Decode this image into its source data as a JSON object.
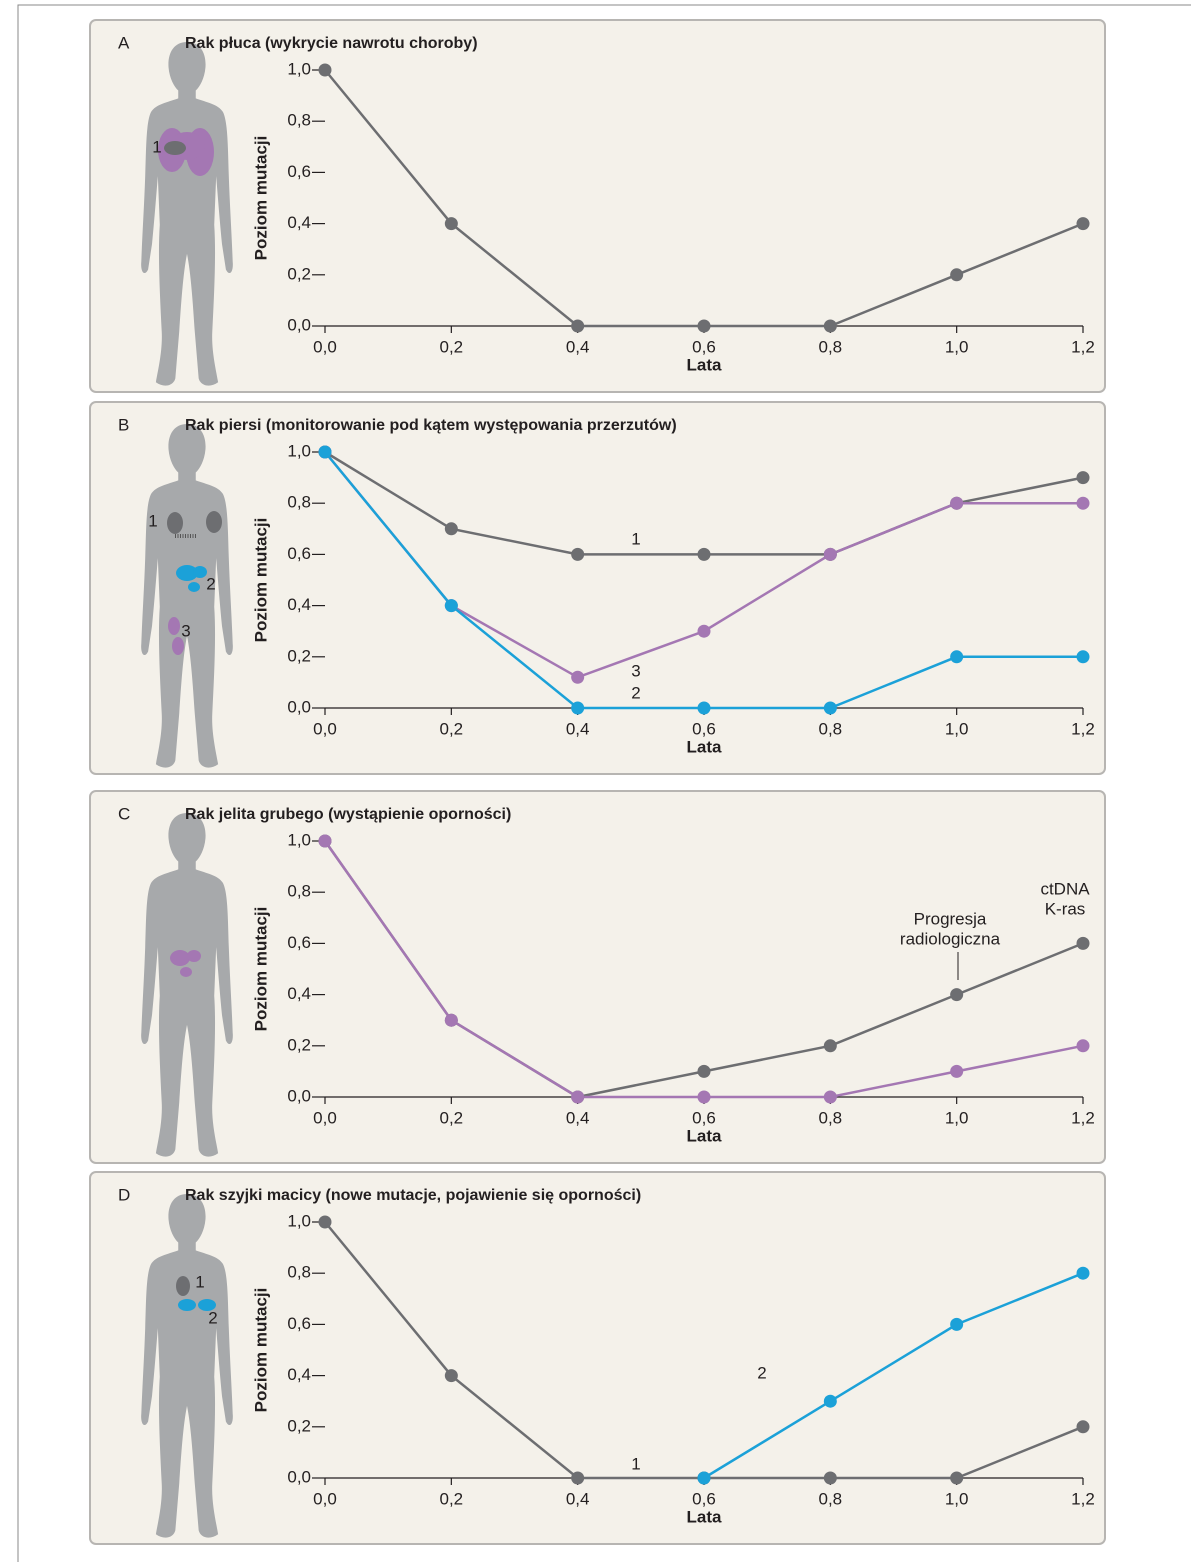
{
  "chart_data": [
    {
      "type": "line",
      "letter": "A",
      "title": "Rak płuca (wykrycie nawrotu choroby)",
      "xlabel": "Lata",
      "ylabel": "Poziom mutacji",
      "x": [
        0,
        0.2,
        0.4,
        0.6,
        0.8,
        1.0,
        1.2
      ],
      "xlim": [
        0,
        1.2
      ],
      "ylim": [
        0,
        1.0
      ],
      "xticks": [
        {
          "value": 0,
          "label": "0,0"
        },
        {
          "value": 0.2,
          "label": "0,2"
        },
        {
          "value": 0.4,
          "label": "0,4"
        },
        {
          "value": 0.6,
          "label": "0,6"
        },
        {
          "value": 0.8,
          "label": "0,8"
        },
        {
          "value": 1.0,
          "label": "1,0"
        },
        {
          "value": 1.2,
          "label": "1,2"
        }
      ],
      "yticks": [
        {
          "value": 0,
          "label": "0,0"
        },
        {
          "value": 0.2,
          "label": "0,2"
        },
        {
          "value": 0.4,
          "label": "0,4"
        },
        {
          "value": 0.6,
          "label": "0,6"
        },
        {
          "value": 0.8,
          "label": "0,8"
        },
        {
          "value": 1.0,
          "label": "1,0"
        }
      ],
      "series": [
        {
          "name": "1",
          "color": "#6d6e71",
          "values": [
            1.0,
            0.4,
            0,
            0,
            0,
            0.2,
            0.4
          ]
        }
      ]
    },
    {
      "type": "line",
      "letter": "B",
      "title": "Rak piersi (monitorowanie pod kątem występowania przerzutów)",
      "xlabel": "Lata",
      "ylabel": "Poziom mutacji",
      "x": [
        0,
        0.2,
        0.4,
        0.6,
        0.8,
        1.0,
        1.2
      ],
      "xlim": [
        0,
        1.2
      ],
      "ylim": [
        0,
        1.0
      ],
      "xticks": [
        {
          "value": 0,
          "label": "0,0"
        },
        {
          "value": 0.2,
          "label": "0,2"
        },
        {
          "value": 0.4,
          "label": "0,4"
        },
        {
          "value": 0.6,
          "label": "0,6"
        },
        {
          "value": 0.8,
          "label": "0,8"
        },
        {
          "value": 1.0,
          "label": "1,0"
        },
        {
          "value": 1.2,
          "label": "1,2"
        }
      ],
      "yticks": [
        {
          "value": 0,
          "label": "0,0"
        },
        {
          "value": 0.2,
          "label": "0,2"
        },
        {
          "value": 0.4,
          "label": "0,4"
        },
        {
          "value": 0.6,
          "label": "0,6"
        },
        {
          "value": 0.8,
          "label": "0,8"
        },
        {
          "value": 1.0,
          "label": "1,0"
        }
      ],
      "series": [
        {
          "name": "1",
          "color": "#6d6e71",
          "values": [
            1.0,
            0.7,
            0.6,
            0.6,
            0.6,
            0.8,
            0.9
          ]
        },
        {
          "name": "3",
          "color": "#a477b3",
          "values": [
            1.0,
            0.4,
            0.12,
            0.3,
            0.6,
            0.8,
            0.8
          ]
        },
        {
          "name": "2",
          "color": "#1ba1d8",
          "values": [
            1.0,
            0.4,
            0,
            0,
            0,
            0.2,
            0.2
          ]
        }
      ]
    },
    {
      "type": "line",
      "letter": "C",
      "title": "Rak jelita grubego (wystąpienie oporności)",
      "xlabel": "Lata",
      "ylabel": "Poziom mutacji",
      "x": [
        0,
        0.2,
        0.4,
        0.6,
        0.8,
        1.0,
        1.2
      ],
      "xlim": [
        0,
        1.2
      ],
      "ylim": [
        0,
        1.0
      ],
      "xticks": [
        {
          "value": 0,
          "label": "0,0"
        },
        {
          "value": 0.2,
          "label": "0,2"
        },
        {
          "value": 0.4,
          "label": "0,4"
        },
        {
          "value": 0.6,
          "label": "0,6"
        },
        {
          "value": 0.8,
          "label": "0,8"
        },
        {
          "value": 1.0,
          "label": "1,0"
        },
        {
          "value": 1.2,
          "label": "1,2"
        }
      ],
      "yticks": [
        {
          "value": 0,
          "label": "0,0"
        },
        {
          "value": 0.2,
          "label": "0,2"
        },
        {
          "value": 0.4,
          "label": "0,4"
        },
        {
          "value": 0.6,
          "label": "0,6"
        },
        {
          "value": 0.8,
          "label": "0,8"
        },
        {
          "value": 1.0,
          "label": "1,0"
        }
      ],
      "series": [
        {
          "color": "#6d6e71",
          "values": [
            1.0,
            0.3,
            0,
            0.1,
            0.2,
            0.4,
            0.6
          ]
        },
        {
          "color": "#a477b3",
          "values": [
            1.0,
            0.3,
            0,
            0,
            0,
            0.1,
            0.2
          ]
        }
      ],
      "annotations": [
        [
          "Progresja",
          "radiologiczna"
        ],
        [
          "ctDNA",
          "K-ras"
        ]
      ]
    },
    {
      "type": "line",
      "letter": "D",
      "title": "Rak szyjki macicy (nowe mutacje, pojawienie się oporności)",
      "xlabel": "Lata",
      "ylabel": "Poziom mutacji",
      "x": [
        0,
        0.2,
        0.4,
        0.6,
        0.8,
        1.0,
        1.2
      ],
      "xlim": [
        0,
        1.2
      ],
      "ylim": [
        0,
        1.0
      ],
      "xticks": [
        {
          "value": 0,
          "label": "0,0"
        },
        {
          "value": 0.2,
          "label": "0,2"
        },
        {
          "value": 0.4,
          "label": "0,4"
        },
        {
          "value": 0.6,
          "label": "0,6"
        },
        {
          "value": 0.8,
          "label": "0,8"
        },
        {
          "value": 1.0,
          "label": "1,0"
        },
        {
          "value": 1.2,
          "label": "1,2"
        }
      ],
      "yticks": [
        {
          "value": 0,
          "label": "0,0"
        },
        {
          "value": 0.2,
          "label": "0,2"
        },
        {
          "value": 0.4,
          "label": "0,4"
        },
        {
          "value": 0.6,
          "label": "0,6"
        },
        {
          "value": 0.8,
          "label": "0,8"
        },
        {
          "value": 1.0,
          "label": "1,0"
        }
      ],
      "series": [
        {
          "name": "1",
          "color": "#6d6e71",
          "values": [
            1.0,
            0.4,
            0,
            0,
            0,
            0,
            0.2
          ]
        },
        {
          "name": "2",
          "color": "#1ba1d8",
          "values": [
            null,
            null,
            null,
            0,
            0.3,
            0.6,
            0.8
          ]
        }
      ]
    }
  ]
}
